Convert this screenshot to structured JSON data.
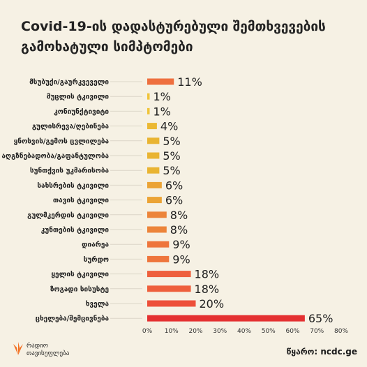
{
  "title": "Covid-19-ის დადასტურებული შემთხვევების\nგამოხატული სიმპტომები",
  "source": "წყარო: ncdc.ge",
  "brand": {
    "name_line1": "რადიო",
    "name_line2": "თავისუფლება",
    "color": "#f37021"
  },
  "chart_data": {
    "type": "bar",
    "orientation": "horizontal",
    "title": "Covid-19-ის დადასტურებული შემთხვევების გამოხატული სიმპტომები",
    "categories": [
      "მსუბუქი/გაურკვეველი",
      "მუცლის ტკივილი",
      "კონიუნქტივიტი",
      "გულისრევა/ღებინება",
      "ყნოსვის/გემოს ცვლილება",
      "აღგზნებადობა/გაფანტულობა",
      "სუნთქვის უკმარისობა",
      "სახსრების ტკივილი",
      "თავის ტკივილი",
      "გულმკერდის ტკივილი",
      "კუნთების ტკივილი",
      "დიარეა",
      "სურდო",
      "ყელის ტკივილი",
      "ზოგადი სისუსტე",
      "ხველა",
      "ცხელება/შემცივნება"
    ],
    "values": [
      11,
      1,
      1,
      4,
      5,
      5,
      5,
      6,
      6,
      8,
      8,
      9,
      9,
      18,
      18,
      20,
      65
    ],
    "value_labels": [
      "11%",
      "1%",
      "1%",
      "4%",
      "5%",
      "5%",
      "5%",
      "6%",
      "6%",
      "8%",
      "8%",
      "9%",
      "9%",
      "18%",
      "18%",
      "20%",
      "65%"
    ],
    "colors": [
      "#ee6f3e",
      "#f0c43a",
      "#f0c43a",
      "#ebb833",
      "#e9b432",
      "#e9b432",
      "#e9b432",
      "#eba335",
      "#eba335",
      "#ec843a",
      "#ec843a",
      "#ee753c",
      "#ee753c",
      "#ee5f3c",
      "#ee5f3c",
      "#ed4f39",
      "#e43031"
    ],
    "xlim": [
      0,
      80
    ],
    "xticks": [
      0,
      10,
      20,
      30,
      40,
      50,
      60,
      70,
      80
    ],
    "xtick_labels": [
      "0%",
      "10%",
      "20%",
      "30%",
      "40%",
      "50%",
      "60%",
      "70%",
      "80%"
    ],
    "grid": false
  }
}
